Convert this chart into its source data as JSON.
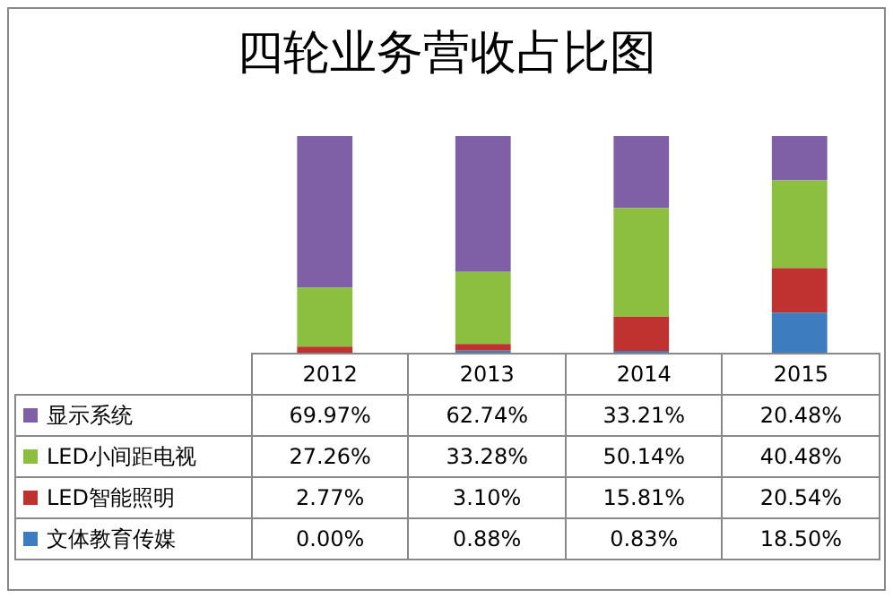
{
  "chart_data": {
    "type": "bar",
    "title": "四轮业务营收占比图",
    "categories": [
      "2012",
      "2013",
      "2014",
      "2015"
    ],
    "stacked": true,
    "tick_labels": false,
    "legend": "bottom",
    "series": [
      {
        "name": "文体教育传媒",
        "color": "#3e7cc0",
        "values": [
          0.0,
          0.88,
          0.83,
          18.5
        ],
        "value_labels": [
          "0.00%",
          "0.88%",
          "0.83%",
          "18.50%"
        ]
      },
      {
        "name": "LED智能照明",
        "color": "#c0322f",
        "values": [
          2.77,
          3.1,
          15.81,
          20.54
        ],
        "value_labels": [
          "2.77%",
          "3.10%",
          "15.81%",
          "20.54%"
        ]
      },
      {
        "name": "LED小间距电视",
        "color": "#8cbf3f",
        "values": [
          27.26,
          33.28,
          50.14,
          40.48
        ],
        "value_labels": [
          "27.26%",
          "33.28%",
          "50.14%",
          "40.48%"
        ]
      },
      {
        "name": "显示系统",
        "color": "#7f5fa6",
        "values": [
          69.97,
          62.74,
          33.21,
          20.48
        ],
        "value_labels": [
          "69.97%",
          "62.74%",
          "33.21%",
          "20.48%"
        ]
      }
    ]
  }
}
